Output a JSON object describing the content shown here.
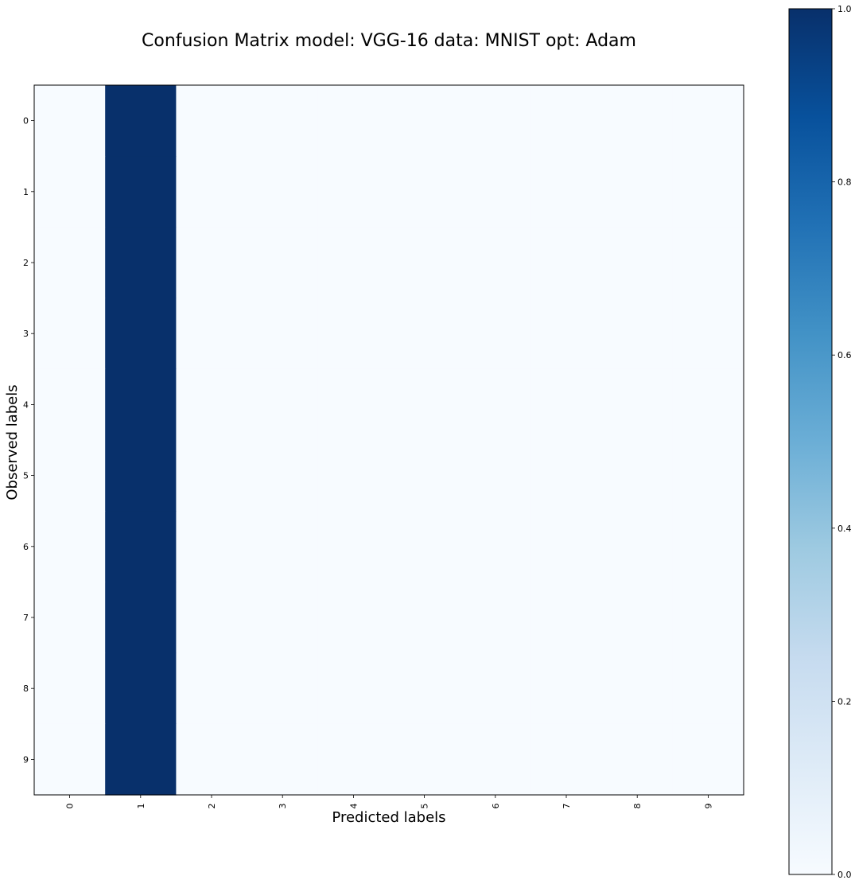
{
  "chart_data": {
    "type": "heatmap",
    "title": "Confusion Matrix model: VGG-16 data: MNIST opt: Adam",
    "xlabel": "Predicted labels",
    "ylabel": "Observed labels",
    "x_categories": [
      "0",
      "1",
      "2",
      "3",
      "4",
      "5",
      "6",
      "7",
      "8",
      "9"
    ],
    "y_categories": [
      "0",
      "1",
      "2",
      "3",
      "4",
      "5",
      "6",
      "7",
      "8",
      "9"
    ],
    "values": [
      [
        0,
        1,
        0,
        0,
        0,
        0,
        0,
        0,
        0,
        0
      ],
      [
        0,
        1,
        0,
        0,
        0,
        0,
        0,
        0,
        0,
        0
      ],
      [
        0,
        1,
        0,
        0,
        0,
        0,
        0,
        0,
        0,
        0
      ],
      [
        0,
        1,
        0,
        0,
        0,
        0,
        0,
        0,
        0,
        0
      ],
      [
        0,
        1,
        0,
        0,
        0,
        0,
        0,
        0,
        0,
        0
      ],
      [
        0,
        1,
        0,
        0,
        0,
        0,
        0,
        0,
        0,
        0
      ],
      [
        0,
        1,
        0,
        0,
        0,
        0,
        0,
        0,
        0,
        0
      ],
      [
        0,
        1,
        0,
        0,
        0,
        0,
        0,
        0,
        0,
        0
      ],
      [
        0,
        1,
        0,
        0,
        0,
        0,
        0,
        0,
        0,
        0
      ],
      [
        0,
        1,
        0,
        0,
        0,
        0,
        0,
        0,
        0,
        0
      ]
    ],
    "colormap": "Blues",
    "color_low": "#f7fbff",
    "color_high": "#08306b",
    "colorbar": {
      "range": [
        0.0,
        1.0
      ],
      "ticks": [
        "0.0",
        "0.2",
        "0.4",
        "0.6",
        "0.8",
        "1.0"
      ],
      "tick_values": [
        0.0,
        0.2,
        0.4,
        0.6,
        0.8,
        1.0
      ]
    },
    "x_tick_rotation": "vertical",
    "grid": false
  }
}
